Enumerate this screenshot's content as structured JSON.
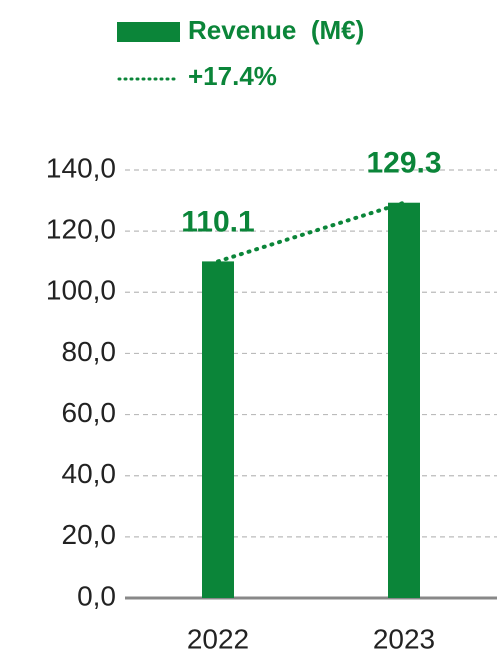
{
  "chart_data": {
    "type": "bar",
    "categories": [
      "2022",
      "2023"
    ],
    "series": [
      {
        "name": "Revenue  (M€)",
        "color": "#0b8539",
        "values": [
          110.1,
          129.3
        ]
      }
    ],
    "trend": {
      "label": "+17.4%",
      "color": "#0b8539",
      "style": "dotted"
    },
    "ylim": [
      0,
      140
    ],
    "yticks": [
      {
        "value": 0,
        "label": "0,0"
      },
      {
        "value": 20,
        "label": "20,0"
      },
      {
        "value": 40,
        "label": "40,0"
      },
      {
        "value": 60,
        "label": "60,0"
      },
      {
        "value": 80,
        "label": "80,0"
      },
      {
        "value": 100,
        "label": "100,0"
      },
      {
        "value": 120,
        "label": "120,0"
      },
      {
        "value": 140,
        "label": "140,0"
      }
    ],
    "grid": true,
    "legend": "top"
  }
}
